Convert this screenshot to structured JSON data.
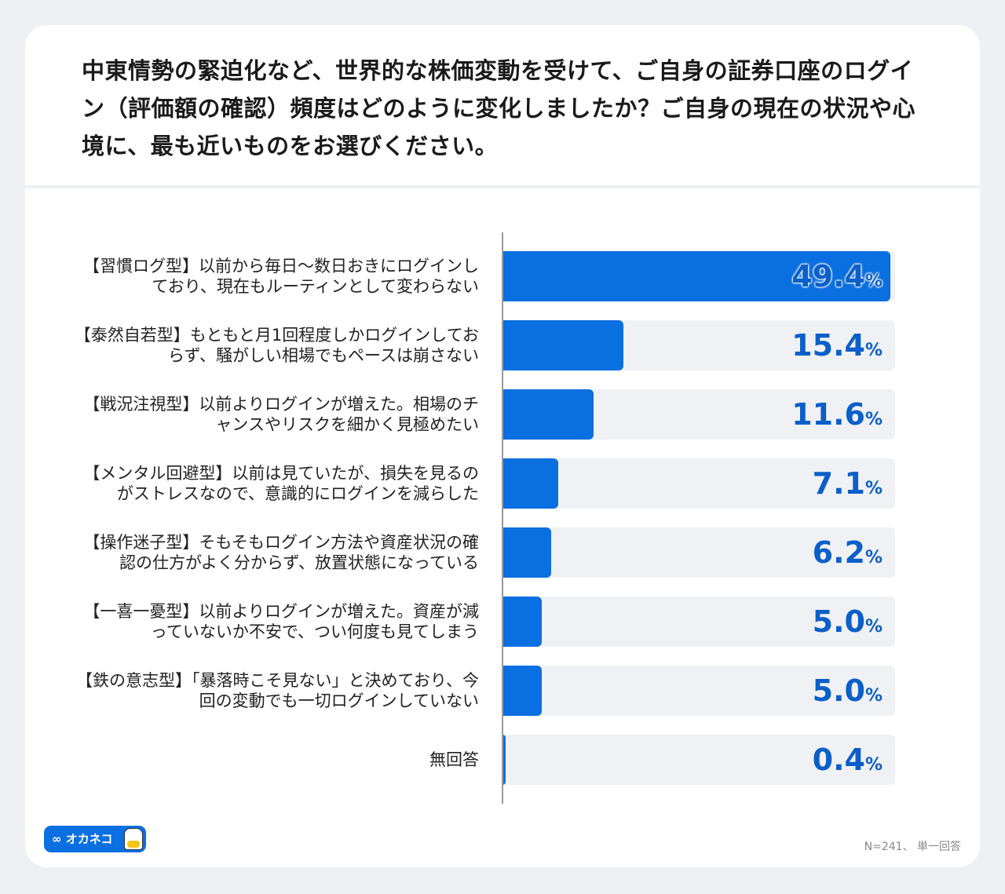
{
  "title": "中東情勢の緊迫化など、世界的な株価変動を受けて、ご自身の証券口座のログイン（評価額の確認）頻度はどのように変化しましたか？ご自身の現在の状況や心境に、最も近いものをお選びください。",
  "note": "N=241、 単一回答",
  "logo": "∞ オカネコ",
  "colors": {
    "bar": "#0a6fe0",
    "track": "#eff1f4",
    "value": "#0b5fc8"
  },
  "chart_data": {
    "type": "bar",
    "orientation": "horizontal",
    "xlim": [
      0,
      50
    ],
    "grid": false,
    "categories": [
      "【習慣ログ型】以前から毎日〜数日おきにログインしており、現在もルーティンとして変わらない",
      "【泰然自若型】もともと月1回程度しかログインしておらず、騒がしい相場でもペースは崩さない",
      "【戦況注視型】以前よりログインが増えた。相場のチャンスやリスクを細かく見極めたい",
      "【メンタル回避型】以前は見ていたが、損失を見るのがストレスなので、意識的にログインを減らした",
      "【操作迷子型】そもそもログイン方法や資産状況の確認の仕方がよく分からず、放置状態になっている",
      "【一喜一憂型】以前よりログインが増えた。資産が減っていないか不安で、つい何度も見てしまう",
      "【鉄の意志型】「暴落時こそ見ない」と決めており、今回の変動でも一切ログインしていない",
      "無回答"
    ],
    "values": [
      49.4,
      15.4,
      11.6,
      7.1,
      6.2,
      5.0,
      5.0,
      0.4
    ],
    "labels": [
      "49.4",
      "15.4",
      "11.6",
      "7.1",
      "6.2",
      "5.0",
      "5.0",
      "0.4"
    ],
    "unit": "%"
  }
}
